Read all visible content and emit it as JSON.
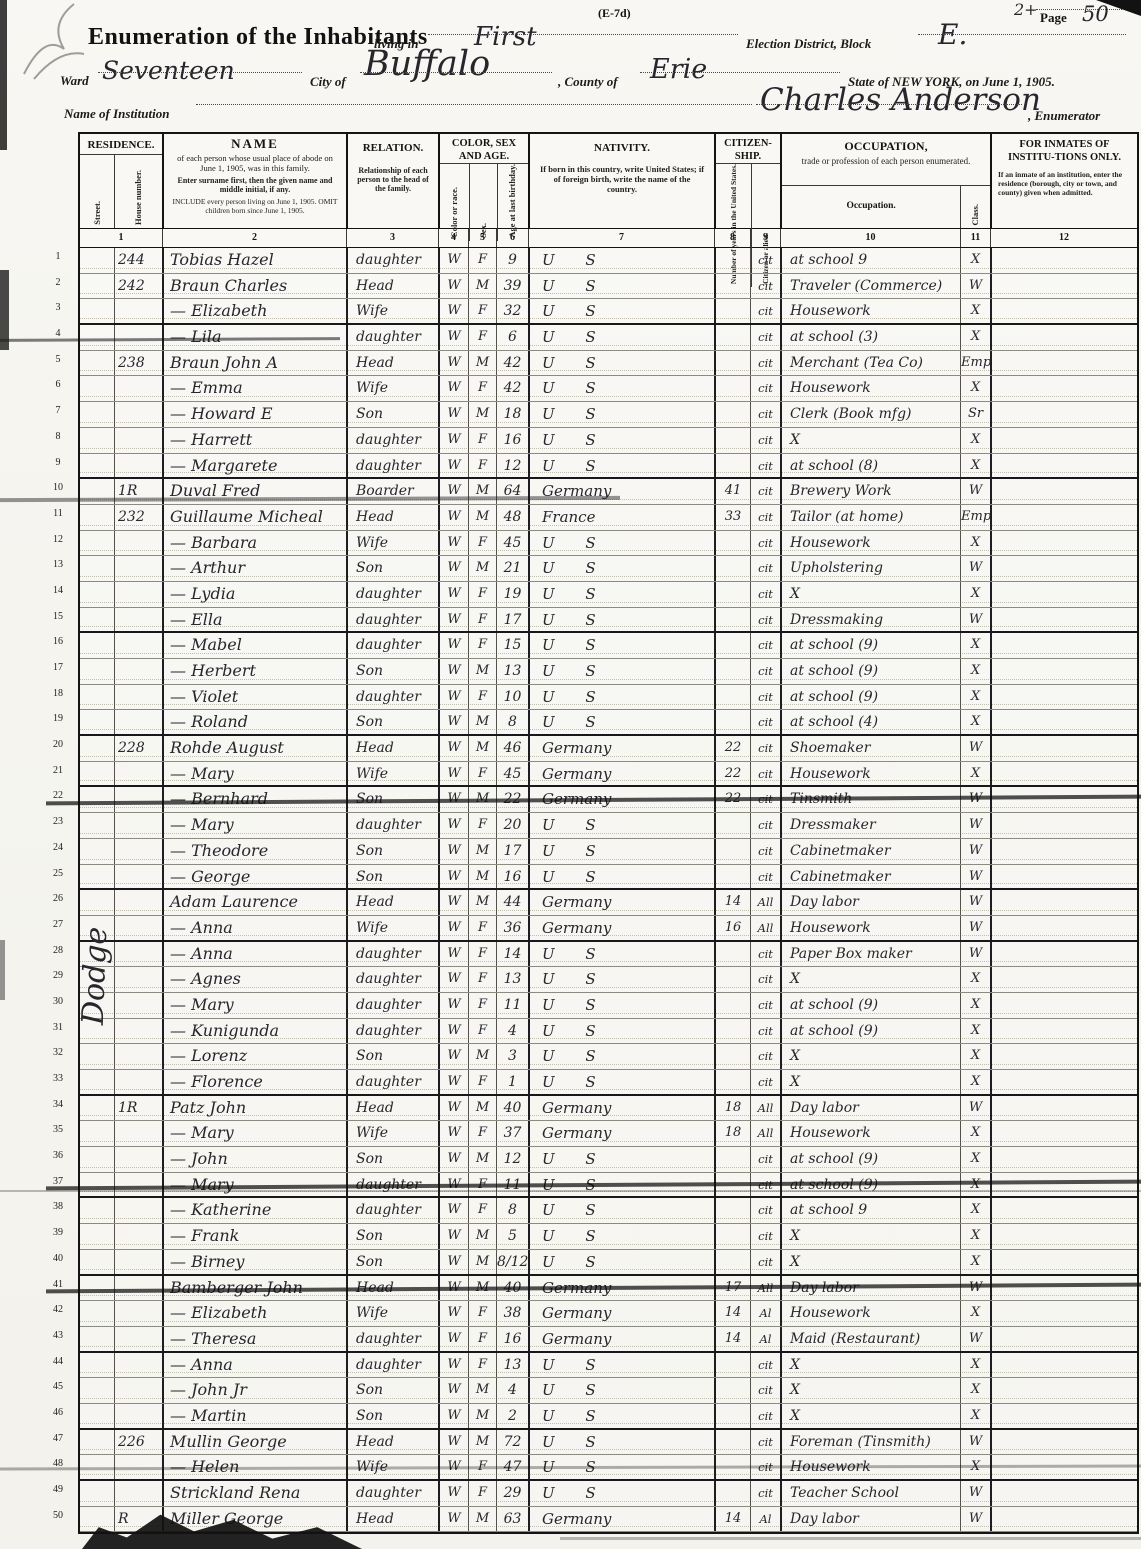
{
  "page": {
    "form_code": "(E-7d)",
    "corner_mark": "2+",
    "page_label": "Page",
    "page_number": "50"
  },
  "header": {
    "title": "Enumeration of the Inhabitants",
    "living_in_label": "living in",
    "living_in_value": "First",
    "district_label": "Election District, Block",
    "district_value": "E.",
    "ward_label": "Ward",
    "ward_value": "Seventeen",
    "city_label": "City of",
    "city_value": "Buffalo",
    "county_label": ", County of",
    "county_value": "Erie",
    "state_label": "State of NEW YORK, on June 1, 1905.",
    "institution_label": "Name of Institution",
    "enumerator_value": "Charles Anderson",
    "enumerator_label": ", Enumerator"
  },
  "table": {
    "columns": {
      "residence": "RESIDENCE.",
      "street": "Street.",
      "house": "House number.",
      "name_title": "NAME",
      "name_sub1": "of each person whose usual place of abode on June 1, 1905, was in this family.",
      "name_sub2": "Enter surname first, then the given name and middle initial, if any.",
      "name_sub3": "INCLUDE every person living on June 1, 1905. OMIT children born since June 1, 1905.",
      "relation_title": "RELATION.",
      "relation_sub": "Relationship of each person to the head of the family.",
      "colorsexage": "COLOR, SEX AND AGE.",
      "color": "Color or race.",
      "sex": "Sex.",
      "age": "Age at last birthday.",
      "nativity_title": "NATIVITY.",
      "nativity_sub": "If born in this country, write United States; if of foreign birth, write the name of the country.",
      "citizenship": "CITIZEN-SHIP.",
      "years": "Number of years in the United States.",
      "citizen": "Citizen or alien.",
      "occupation_title": "OCCUPATION,",
      "occupation_sub": "trade or profession of each person enumerated.",
      "occupation": "Occupation.",
      "cls": "Class.",
      "inmates_title": "FOR INMATES OF INSTITU-TIONS ONLY.",
      "inmates_sub": "If an inmate of an institution, enter the residence (borough, city or town, and county) given when admitted."
    },
    "col_numbers": [
      "1",
      "2",
      "3",
      "4",
      "5",
      "6",
      "7",
      "8",
      "9",
      "10",
      "11",
      "12"
    ],
    "street_vertical": "Dodge",
    "rows": [
      {
        "n": "1",
        "house": "244",
        "name": "Tobias Hazel",
        "relation": "daughter",
        "color": "W",
        "sex": "F",
        "age": "9",
        "nativity": "U S",
        "years": "",
        "citizen": "cit",
        "occupation": "at school 9",
        "cls": "X"
      },
      {
        "n": "2",
        "house": "242",
        "name": "Braun Charles",
        "relation": "Head",
        "color": "W",
        "sex": "M",
        "age": "39",
        "nativity": "U S",
        "years": "",
        "citizen": "cit",
        "occupation": "Traveler (Commerce)",
        "cls": "W"
      },
      {
        "n": "3",
        "house": "",
        "name": "— Elizabeth",
        "relation": "Wife",
        "color": "W",
        "sex": "F",
        "age": "32",
        "nativity": "U S",
        "years": "",
        "citizen": "cit",
        "occupation": "Housework",
        "cls": "X",
        "thick": true
      },
      {
        "n": "4",
        "house": "",
        "name": "— Lila",
        "relation": "daughter",
        "color": "W",
        "sex": "F",
        "age": "6",
        "nativity": "U S",
        "years": "",
        "citizen": "cit",
        "occupation": "at school (3)",
        "cls": "X"
      },
      {
        "n": "5",
        "house": "238",
        "name": "Braun John A",
        "relation": "Head",
        "color": "W",
        "sex": "M",
        "age": "42",
        "nativity": "U S",
        "years": "",
        "citizen": "cit",
        "occupation": "Merchant (Tea Co)",
        "cls": "Emp"
      },
      {
        "n": "6",
        "house": "",
        "name": "— Emma",
        "relation": "Wife",
        "color": "W",
        "sex": "F",
        "age": "42",
        "nativity": "U S",
        "years": "",
        "citizen": "cit",
        "occupation": "Housework",
        "cls": "X"
      },
      {
        "n": "7",
        "house": "",
        "name": "— Howard E",
        "relation": "Son",
        "color": "W",
        "sex": "M",
        "age": "18",
        "nativity": "U S",
        "years": "",
        "citizen": "cit",
        "occupation": "Clerk (Book mfg)",
        "cls": "Sr"
      },
      {
        "n": "8",
        "house": "",
        "name": "— Harrett",
        "relation": "daughter",
        "color": "W",
        "sex": "F",
        "age": "16",
        "nativity": "U S",
        "years": "",
        "citizen": "cit",
        "occupation": "X",
        "cls": "X"
      },
      {
        "n": "9",
        "house": "",
        "name": "— Margarete",
        "relation": "daughter",
        "color": "W",
        "sex": "F",
        "age": "12",
        "nativity": "U S",
        "years": "",
        "citizen": "cit",
        "occupation": "at school (8)",
        "cls": "X",
        "thick": true
      },
      {
        "n": "10",
        "house": "1R",
        "name": "Duval Fred",
        "relation": "Boarder",
        "color": "W",
        "sex": "M",
        "age": "64",
        "nativity": "Germany",
        "years": "41",
        "citizen": "cit",
        "occupation": "Brewery Work",
        "cls": "W"
      },
      {
        "n": "11",
        "house": "232",
        "name": "Guillaume Micheal",
        "relation": "Head",
        "color": "W",
        "sex": "M",
        "age": "48",
        "nativity": "France",
        "years": "33",
        "citizen": "cit",
        "occupation": "Tailor (at home)",
        "cls": "Emp"
      },
      {
        "n": "12",
        "house": "",
        "name": "— Barbara",
        "relation": "Wife",
        "color": "W",
        "sex": "F",
        "age": "45",
        "nativity": "U S",
        "years": "",
        "citizen": "cit",
        "occupation": "Housework",
        "cls": "X"
      },
      {
        "n": "13",
        "house": "",
        "name": "— Arthur",
        "relation": "Son",
        "color": "W",
        "sex": "M",
        "age": "21",
        "nativity": "U S",
        "years": "",
        "citizen": "cit",
        "occupation": "Upholstering",
        "cls": "W"
      },
      {
        "n": "14",
        "house": "",
        "name": "— Lydia",
        "relation": "daughter",
        "color": "W",
        "sex": "F",
        "age": "19",
        "nativity": "U S",
        "years": "",
        "citizen": "cit",
        "occupation": "X",
        "cls": "X"
      },
      {
        "n": "15",
        "house": "",
        "name": "— Ella",
        "relation": "daughter",
        "color": "W",
        "sex": "F",
        "age": "17",
        "nativity": "U S",
        "years": "",
        "citizen": "cit",
        "occupation": "Dressmaking",
        "cls": "W",
        "thick": true
      },
      {
        "n": "16",
        "house": "",
        "name": "— Mabel",
        "relation": "daughter",
        "color": "W",
        "sex": "F",
        "age": "15",
        "nativity": "U S",
        "years": "",
        "citizen": "cit",
        "occupation": "at school (9)",
        "cls": "X"
      },
      {
        "n": "17",
        "house": "",
        "name": "— Herbert",
        "relation": "Son",
        "color": "W",
        "sex": "M",
        "age": "13",
        "nativity": "U S",
        "years": "",
        "citizen": "cit",
        "occupation": "at school (9)",
        "cls": "X"
      },
      {
        "n": "18",
        "house": "",
        "name": "— Violet",
        "relation": "daughter",
        "color": "W",
        "sex": "F",
        "age": "10",
        "nativity": "U S",
        "years": "",
        "citizen": "cit",
        "occupation": "at school (9)",
        "cls": "X"
      },
      {
        "n": "19",
        "house": "",
        "name": "— Roland",
        "relation": "Son",
        "color": "W",
        "sex": "M",
        "age": "8",
        "nativity": "U S",
        "years": "",
        "citizen": "cit",
        "occupation": "at school (4)",
        "cls": "X",
        "thick": true
      },
      {
        "n": "20",
        "house": "228",
        "name": "Rohde August",
        "relation": "Head",
        "color": "W",
        "sex": "M",
        "age": "46",
        "nativity": "Germany",
        "years": "22",
        "citizen": "cit",
        "occupation": "Shoemaker",
        "cls": "W"
      },
      {
        "n": "21",
        "house": "",
        "name": "— Mary",
        "relation": "Wife",
        "color": "W",
        "sex": "F",
        "age": "45",
        "nativity": "Germany",
        "years": "22",
        "citizen": "cit",
        "occupation": "Housework",
        "cls": "X",
        "thick": true
      },
      {
        "n": "22",
        "house": "",
        "name": "— Bernhard",
        "relation": "Son",
        "color": "W",
        "sex": "M",
        "age": "22",
        "nativity": "Germany",
        "years": "22",
        "citizen": "cit",
        "occupation": "Tinsmith",
        "cls": "W",
        "struck": true
      },
      {
        "n": "23",
        "house": "",
        "name": "— Mary",
        "relation": "daughter",
        "color": "W",
        "sex": "F",
        "age": "20",
        "nativity": "U S",
        "years": "",
        "citizen": "cit",
        "occupation": "Dressmaker",
        "cls": "W"
      },
      {
        "n": "24",
        "house": "",
        "name": "— Theodore",
        "relation": "Son",
        "color": "W",
        "sex": "M",
        "age": "17",
        "nativity": "U S",
        "years": "",
        "citizen": "cit",
        "occupation": "Cabinetmaker",
        "cls": "W"
      },
      {
        "n": "25",
        "house": "",
        "name": "— George",
        "relation": "Son",
        "color": "W",
        "sex": "M",
        "age": "16",
        "nativity": "U S",
        "years": "",
        "citizen": "cit",
        "occupation": "Cabinetmaker",
        "cls": "W",
        "thick": true
      },
      {
        "n": "26",
        "house": "",
        "name": "Adam Laurence",
        "relation": "Head",
        "color": "W",
        "sex": "M",
        "age": "44",
        "nativity": "Germany",
        "years": "14",
        "citizen": "All",
        "occupation": "Day labor",
        "cls": "W"
      },
      {
        "n": "27",
        "house": "",
        "name": "— Anna",
        "relation": "Wife",
        "color": "W",
        "sex": "F",
        "age": "36",
        "nativity": "Germany",
        "years": "16",
        "citizen": "All",
        "occupation": "Housework",
        "cls": "W",
        "thick": true
      },
      {
        "n": "28",
        "house": "",
        "name": "— Anna",
        "relation": "daughter",
        "color": "W",
        "sex": "F",
        "age": "14",
        "nativity": "U S",
        "years": "",
        "citizen": "cit",
        "occupation": "Paper Box maker",
        "cls": "W"
      },
      {
        "n": "29",
        "house": "",
        "name": "— Agnes",
        "relation": "daughter",
        "color": "W",
        "sex": "F",
        "age": "13",
        "nativity": "U S",
        "years": "",
        "citizen": "cit",
        "occupation": "X",
        "cls": "X"
      },
      {
        "n": "30",
        "house": "",
        "name": "— Mary",
        "relation": "daughter",
        "color": "W",
        "sex": "F",
        "age": "11",
        "nativity": "U S",
        "years": "",
        "citizen": "cit",
        "occupation": "at school (9)",
        "cls": "X"
      },
      {
        "n": "31",
        "house": "",
        "name": "— Kunigunda",
        "relation": "daughter",
        "color": "W",
        "sex": "F",
        "age": "4",
        "nativity": "U S",
        "years": "",
        "citizen": "cit",
        "occupation": "at school (9)",
        "cls": "X"
      },
      {
        "n": "32",
        "house": "",
        "name": "— Lorenz",
        "relation": "Son",
        "color": "W",
        "sex": "M",
        "age": "3",
        "nativity": "U S",
        "years": "",
        "citizen": "cit",
        "occupation": "X",
        "cls": "X"
      },
      {
        "n": "33",
        "house": "",
        "name": "— Florence",
        "relation": "daughter",
        "color": "W",
        "sex": "F",
        "age": "1",
        "nativity": "U S",
        "years": "",
        "citizen": "cit",
        "occupation": "X",
        "cls": "X",
        "thick": true
      },
      {
        "n": "34",
        "house": "1R",
        "name": "Patz John",
        "relation": "Head",
        "color": "W",
        "sex": "M",
        "age": "40",
        "nativity": "Germany",
        "years": "18",
        "citizen": "All",
        "occupation": "Day labor",
        "cls": "W"
      },
      {
        "n": "35",
        "house": "",
        "name": "— Mary",
        "relation": "Wife",
        "color": "W",
        "sex": "F",
        "age": "37",
        "nativity": "Germany",
        "years": "18",
        "citizen": "All",
        "occupation": "Housework",
        "cls": "X"
      },
      {
        "n": "36",
        "house": "",
        "name": "— John",
        "relation": "Son",
        "color": "W",
        "sex": "M",
        "age": "12",
        "nativity": "U S",
        "years": "",
        "citizen": "cit",
        "occupation": "at school (9)",
        "cls": "X"
      },
      {
        "n": "37",
        "house": "",
        "name": "— Mary",
        "relation": "daughter",
        "color": "W",
        "sex": "F",
        "age": "11",
        "nativity": "U S",
        "years": "",
        "citizen": "cit",
        "occupation": "at school (9)",
        "cls": "X",
        "struck": true,
        "thick": true
      },
      {
        "n": "38",
        "house": "",
        "name": "— Katherine",
        "relation": "daughter",
        "color": "W",
        "sex": "F",
        "age": "8",
        "nativity": "U S",
        "years": "",
        "citizen": "cit",
        "occupation": "at school 9",
        "cls": "X"
      },
      {
        "n": "39",
        "house": "",
        "name": "— Frank",
        "relation": "Son",
        "color": "W",
        "sex": "M",
        "age": "5",
        "nativity": "U S",
        "years": "",
        "citizen": "cit",
        "occupation": "X",
        "cls": "X"
      },
      {
        "n": "40",
        "house": "",
        "name": "— Birney",
        "relation": "Son",
        "color": "W",
        "sex": "M",
        "age": "8/12",
        "nativity": "U S",
        "years": "",
        "citizen": "cit",
        "occupation": "X",
        "cls": "X",
        "thick": true
      },
      {
        "n": "41",
        "house": "",
        "name": "Bamberger John",
        "relation": "Head",
        "color": "W",
        "sex": "M",
        "age": "40",
        "nativity": "Germany",
        "years": "17",
        "citizen": "All",
        "occupation": "Day labor",
        "cls": "W",
        "struck": true
      },
      {
        "n": "42",
        "house": "",
        "name": "— Elizabeth",
        "relation": "Wife",
        "color": "W",
        "sex": "F",
        "age": "38",
        "nativity": "Germany",
        "years": "14",
        "citizen": "Al",
        "occupation": "Housework",
        "cls": "X"
      },
      {
        "n": "43",
        "house": "",
        "name": "— Theresa",
        "relation": "daughter",
        "color": "W",
        "sex": "F",
        "age": "16",
        "nativity": "Germany",
        "years": "14",
        "citizen": "Al",
        "occupation": "Maid (Restaurant)",
        "cls": "W",
        "thick": true
      },
      {
        "n": "44",
        "house": "",
        "name": "— Anna",
        "relation": "daughter",
        "color": "W",
        "sex": "F",
        "age": "13",
        "nativity": "U S",
        "years": "",
        "citizen": "cit",
        "occupation": "X",
        "cls": "X"
      },
      {
        "n": "45",
        "house": "",
        "name": "— John Jr",
        "relation": "Son",
        "color": "W",
        "sex": "M",
        "age": "4",
        "nativity": "U S",
        "years": "",
        "citizen": "cit",
        "occupation": "X",
        "cls": "X"
      },
      {
        "n": "46",
        "house": "",
        "name": "— Martin",
        "relation": "Son",
        "color": "W",
        "sex": "M",
        "age": "2",
        "nativity": "U S",
        "years": "",
        "citizen": "cit",
        "occupation": "X",
        "cls": "X",
        "thick": true
      },
      {
        "n": "47",
        "house": "226",
        "name": "Mullin George",
        "relation": "Head",
        "color": "W",
        "sex": "M",
        "age": "72",
        "nativity": "U S",
        "years": "",
        "citizen": "cit",
        "occupation": "Foreman (Tinsmith)",
        "cls": "W"
      },
      {
        "n": "48",
        "house": "",
        "name": "— Helen",
        "relation": "Wife",
        "color": "W",
        "sex": "F",
        "age": "47",
        "nativity": "U S",
        "years": "",
        "citizen": "cit",
        "occupation": "Housework",
        "cls": "X",
        "thick": true
      },
      {
        "n": "49",
        "house": "",
        "name": "Strickland Rena",
        "relation": "daughter",
        "color": "W",
        "sex": "F",
        "age": "29",
        "nativity": "U S",
        "years": "",
        "citizen": "cit",
        "occupation": "Teacher School",
        "cls": "W"
      },
      {
        "n": "50",
        "house": "R",
        "name": "Miller George",
        "relation": "Head",
        "color": "W",
        "sex": "M",
        "age": "63",
        "nativity": "Germany",
        "years": "14",
        "citizen": "Al",
        "occupation": "Day labor",
        "cls": "W"
      }
    ]
  }
}
